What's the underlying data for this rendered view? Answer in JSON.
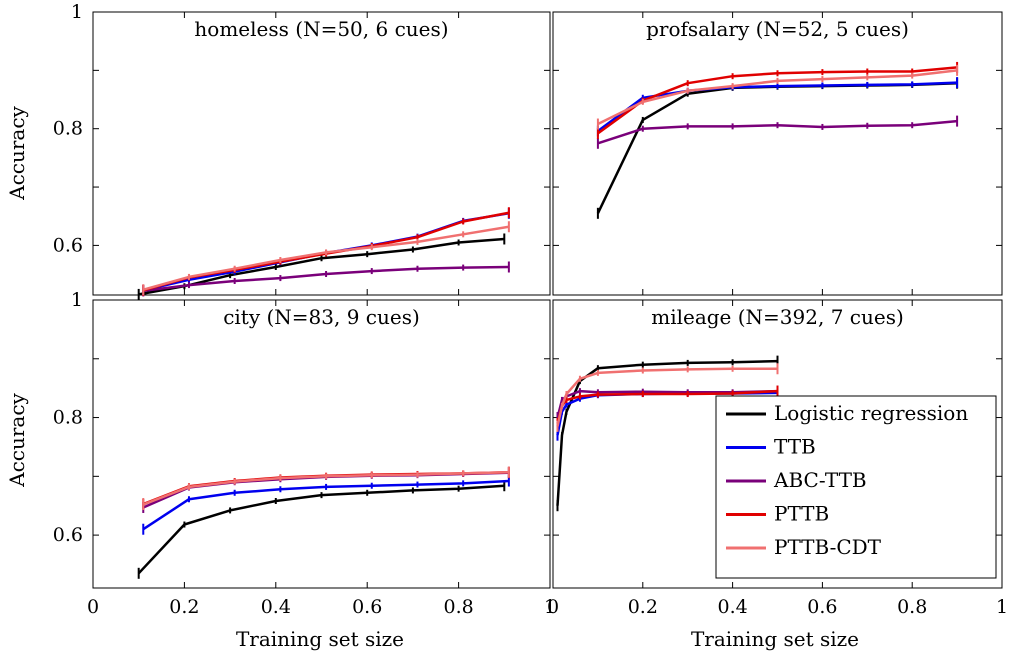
{
  "figure": {
    "ylabel": "Accuracy",
    "xlabel": "Training set size"
  },
  "legend": [
    {
      "label": "Logistic regression",
      "color": "#000000"
    },
    {
      "label": "TTB",
      "color": "#0000ee"
    },
    {
      "label": "ABC-TTB",
      "color": "#7a007a"
    },
    {
      "label": "PTTB",
      "color": "#e00000"
    },
    {
      "label": "PTTB-CDT",
      "color": "#f07070"
    }
  ],
  "chart_data": [
    {
      "type": "line",
      "title": "homeless (N=50, 6 cues)",
      "xlim": [
        0,
        1
      ],
      "ylim": [
        0.515,
        1
      ],
      "yticks": [
        "0.6",
        "0.8",
        "1"
      ],
      "xticks": [],
      "series": [
        {
          "name": "Logistic regression",
          "x": [
            0.1,
            0.2,
            0.3,
            0.4,
            0.5,
            0.6,
            0.7,
            0.8,
            0.9
          ],
          "y": [
            0.516,
            0.53,
            0.549,
            0.563,
            0.578,
            0.585,
            0.593,
            0.605,
            0.611
          ]
        },
        {
          "name": "TTB",
          "x": [
            0.11,
            0.21,
            0.31,
            0.41,
            0.51,
            0.61,
            0.71,
            0.81,
            0.91
          ],
          "y": [
            0.523,
            0.541,
            0.555,
            0.571,
            0.587,
            0.6,
            0.615,
            0.642,
            0.655
          ]
        },
        {
          "name": "ABC-TTB",
          "x": [
            0.11,
            0.21,
            0.31,
            0.41,
            0.51,
            0.61,
            0.71,
            0.81,
            0.91
          ],
          "y": [
            0.522,
            0.532,
            0.539,
            0.544,
            0.551,
            0.556,
            0.56,
            0.562,
            0.563
          ]
        },
        {
          "name": "PTTB",
          "x": [
            0.11,
            0.21,
            0.31,
            0.41,
            0.51,
            0.61,
            0.71,
            0.81,
            0.91
          ],
          "y": [
            0.523,
            0.545,
            0.558,
            0.572,
            0.586,
            0.599,
            0.614,
            0.641,
            0.656
          ]
        },
        {
          "name": "PTTB-CDT",
          "x": [
            0.11,
            0.21,
            0.31,
            0.41,
            0.51,
            0.61,
            0.71,
            0.81,
            0.91
          ],
          "y": [
            0.524,
            0.546,
            0.56,
            0.575,
            0.588,
            0.597,
            0.606,
            0.619,
            0.632
          ]
        }
      ]
    },
    {
      "type": "line",
      "title": "profsalary (N=52, 5 cues)",
      "xlim": [
        0,
        1
      ],
      "ylim": [
        0.515,
        1
      ],
      "yticks": [],
      "xticks": [],
      "series": [
        {
          "name": "Logistic regression",
          "x": [
            0.1,
            0.2,
            0.3,
            0.4,
            0.5,
            0.6,
            0.7,
            0.8,
            0.9
          ],
          "y": [
            0.655,
            0.815,
            0.86,
            0.87,
            0.872,
            0.873,
            0.874,
            0.875,
            0.878
          ]
        },
        {
          "name": "TTB",
          "x": [
            0.1,
            0.2,
            0.3,
            0.4,
            0.5,
            0.6,
            0.7,
            0.8,
            0.9
          ],
          "y": [
            0.796,
            0.853,
            0.865,
            0.871,
            0.873,
            0.874,
            0.875,
            0.876,
            0.879
          ]
        },
        {
          "name": "ABC-TTB",
          "x": [
            0.1,
            0.2,
            0.3,
            0.4,
            0.5,
            0.6,
            0.7,
            0.8,
            0.9
          ],
          "y": [
            0.775,
            0.8,
            0.804,
            0.804,
            0.806,
            0.803,
            0.805,
            0.806,
            0.813
          ]
        },
        {
          "name": "PTTB",
          "x": [
            0.1,
            0.2,
            0.3,
            0.4,
            0.5,
            0.6,
            0.7,
            0.8,
            0.9
          ],
          "y": [
            0.792,
            0.848,
            0.878,
            0.89,
            0.895,
            0.897,
            0.898,
            0.898,
            0.905
          ]
        },
        {
          "name": "PTTB-CDT",
          "x": [
            0.1,
            0.2,
            0.3,
            0.4,
            0.5,
            0.6,
            0.7,
            0.8,
            0.9
          ],
          "y": [
            0.808,
            0.846,
            0.865,
            0.873,
            0.882,
            0.885,
            0.888,
            0.891,
            0.9
          ]
        }
      ]
    },
    {
      "type": "line",
      "title": "city (N=83, 9 cues)",
      "xlim": [
        0,
        1
      ],
      "ylim": [
        0.51,
        1
      ],
      "yticks": [
        "0.6",
        "0.8",
        "1"
      ],
      "xticks": [
        "0",
        "0.2",
        "0.4",
        "0.6",
        "0.8",
        "1"
      ],
      "series": [
        {
          "name": "Logistic regression",
          "x": [
            0.1,
            0.2,
            0.3,
            0.4,
            0.5,
            0.6,
            0.7,
            0.8,
            0.9
          ],
          "y": [
            0.535,
            0.618,
            0.642,
            0.658,
            0.668,
            0.672,
            0.676,
            0.679,
            0.684
          ]
        },
        {
          "name": "TTB",
          "x": [
            0.11,
            0.21,
            0.31,
            0.41,
            0.51,
            0.61,
            0.71,
            0.81,
            0.91
          ],
          "y": [
            0.61,
            0.661,
            0.672,
            0.678,
            0.682,
            0.684,
            0.686,
            0.688,
            0.692
          ]
        },
        {
          "name": "ABC-TTB",
          "x": [
            0.11,
            0.21,
            0.31,
            0.41,
            0.51,
            0.61,
            0.71,
            0.81,
            0.91
          ],
          "y": [
            0.647,
            0.681,
            0.69,
            0.695,
            0.699,
            0.701,
            0.702,
            0.704,
            0.706
          ]
        },
        {
          "name": "PTTB",
          "x": [
            0.11,
            0.21,
            0.31,
            0.41,
            0.51,
            0.61,
            0.71,
            0.81,
            0.91
          ],
          "y": [
            0.653,
            0.683,
            0.692,
            0.698,
            0.701,
            0.703,
            0.704,
            0.705,
            0.707
          ]
        },
        {
          "name": "PTTB-CDT",
          "x": [
            0.11,
            0.21,
            0.31,
            0.41,
            0.51,
            0.61,
            0.71,
            0.81,
            0.91
          ],
          "y": [
            0.652,
            0.682,
            0.691,
            0.697,
            0.7,
            0.702,
            0.703,
            0.705,
            0.707
          ]
        }
      ]
    },
    {
      "type": "line",
      "title": "mileage (N=392, 7 cues)",
      "xlim": [
        0,
        1
      ],
      "ylim": [
        0.51,
        1
      ],
      "yticks": [],
      "xticks": [
        "0",
        "0.2",
        "0.4",
        "0.6",
        "0.8",
        "1"
      ],
      "series": [
        {
          "name": "Logistic regression",
          "x": [
            0.01,
            0.02,
            0.03,
            0.06,
            0.1,
            0.2,
            0.3,
            0.4,
            0.5
          ],
          "y": [
            0.65,
            0.77,
            0.81,
            0.862,
            0.884,
            0.89,
            0.893,
            0.894,
            0.896
          ]
        },
        {
          "name": "TTB",
          "x": [
            0.01,
            0.02,
            0.03,
            0.06,
            0.1,
            0.2,
            0.3,
            0.4,
            0.5
          ],
          "y": [
            0.77,
            0.81,
            0.822,
            0.832,
            0.838,
            0.84,
            0.841,
            0.841,
            0.842
          ]
        },
        {
          "name": "ABC-TTB",
          "x": [
            0.01,
            0.02,
            0.03,
            0.06,
            0.1,
            0.2,
            0.3,
            0.4,
            0.5
          ],
          "y": [
            0.8,
            0.83,
            0.836,
            0.845,
            0.843,
            0.844,
            0.843,
            0.843,
            0.845
          ]
        },
        {
          "name": "PTTB",
          "x": [
            0.01,
            0.02,
            0.03,
            0.06,
            0.1,
            0.2,
            0.3,
            0.4,
            0.5
          ],
          "y": [
            0.79,
            0.82,
            0.83,
            0.836,
            0.839,
            0.84,
            0.84,
            0.841,
            0.845
          ]
        },
        {
          "name": "PTTB-CDT",
          "x": [
            0.01,
            0.02,
            0.03,
            0.06,
            0.1,
            0.2,
            0.3,
            0.4,
            0.5
          ],
          "y": [
            0.785,
            0.82,
            0.84,
            0.866,
            0.876,
            0.88,
            0.882,
            0.883,
            0.883
          ]
        }
      ]
    }
  ]
}
